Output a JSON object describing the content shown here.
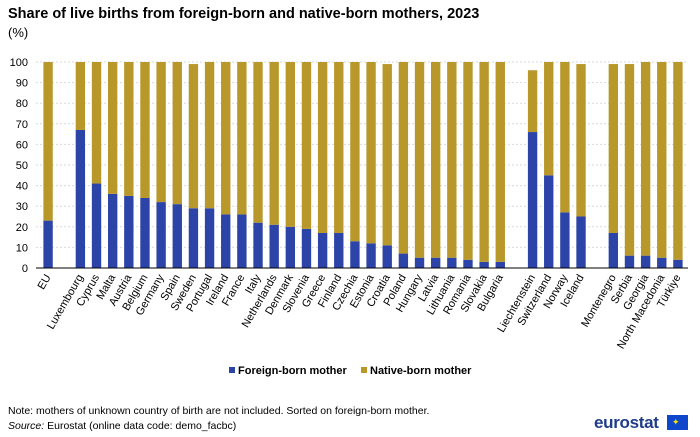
{
  "title": "Share of live births from foreign-born and native-born mothers, 2023",
  "subtitle": "(%)",
  "note": "Note: mothers of unknown country of birth are not included. Sorted on foreign-born mother.",
  "source_label": "Source:",
  "source_text": " Eurostat (online data code: demo_facbc)",
  "logo_text": "eurostat",
  "chart_data": {
    "type": "bar",
    "stacked": true,
    "ylim": [
      0,
      100
    ],
    "yticks": [
      0,
      10,
      20,
      30,
      40,
      50,
      60,
      70,
      80,
      90,
      100
    ],
    "grid": true,
    "legend_position": "bottom",
    "colors": {
      "foreign": "#2c44a8",
      "native": "#b8982a"
    },
    "groups": [
      [
        "EU"
      ],
      [
        "Luxembourg",
        "Cyprus",
        "Malta",
        "Austria",
        "Belgium",
        "Germany",
        "Spain",
        "Sweden",
        "Portugal",
        "Ireland",
        "France",
        "Italy",
        "Netherlands",
        "Denmark",
        "Slovenia",
        "Greece",
        "Finland",
        "Czechia",
        "Estonia",
        "Croatia",
        "Poland",
        "Hungary",
        "Latvia",
        "Lithuania",
        "Romania",
        "Slovakia",
        "Bulgaria"
      ],
      [
        "Liechtenstein",
        "Switzerland",
        "Norway",
        "Iceland"
      ],
      [
        "Montenegro",
        "Serbia",
        "Georgia",
        "North Macedonia",
        "Türkiye"
      ]
    ],
    "categories": [
      "EU",
      "Luxembourg",
      "Cyprus",
      "Malta",
      "Austria",
      "Belgium",
      "Germany",
      "Spain",
      "Sweden",
      "Portugal",
      "Ireland",
      "France",
      "Italy",
      "Netherlands",
      "Denmark",
      "Slovenia",
      "Greece",
      "Finland",
      "Czechia",
      "Estonia",
      "Croatia",
      "Poland",
      "Hungary",
      "Latvia",
      "Lithuania",
      "Romania",
      "Slovakia",
      "Bulgaria",
      "Liechtenstein",
      "Switzerland",
      "Norway",
      "Iceland",
      "Montenegro",
      "Serbia",
      "Georgia",
      "North Macedonia",
      "Türkiye"
    ],
    "series": [
      {
        "name": "Foreign-born mother",
        "values": [
          23,
          67,
          41,
          36,
          35,
          34,
          32,
          31,
          29,
          29,
          26,
          26,
          22,
          21,
          20,
          19,
          17,
          17,
          13,
          12,
          11,
          7,
          5,
          5,
          5,
          4,
          3,
          3,
          66,
          45,
          27,
          25,
          17,
          6,
          6,
          5,
          4
        ]
      },
      {
        "name": "Native-born mother",
        "values": [
          77,
          33,
          59,
          64,
          65,
          66,
          68,
          69,
          70,
          71,
          74,
          74,
          78,
          79,
          80,
          81,
          83,
          83,
          87,
          88,
          88,
          93,
          95,
          95,
          95,
          96,
          97,
          97,
          30,
          55,
          73,
          74,
          82,
          93,
          94,
          95,
          96
        ]
      }
    ]
  }
}
